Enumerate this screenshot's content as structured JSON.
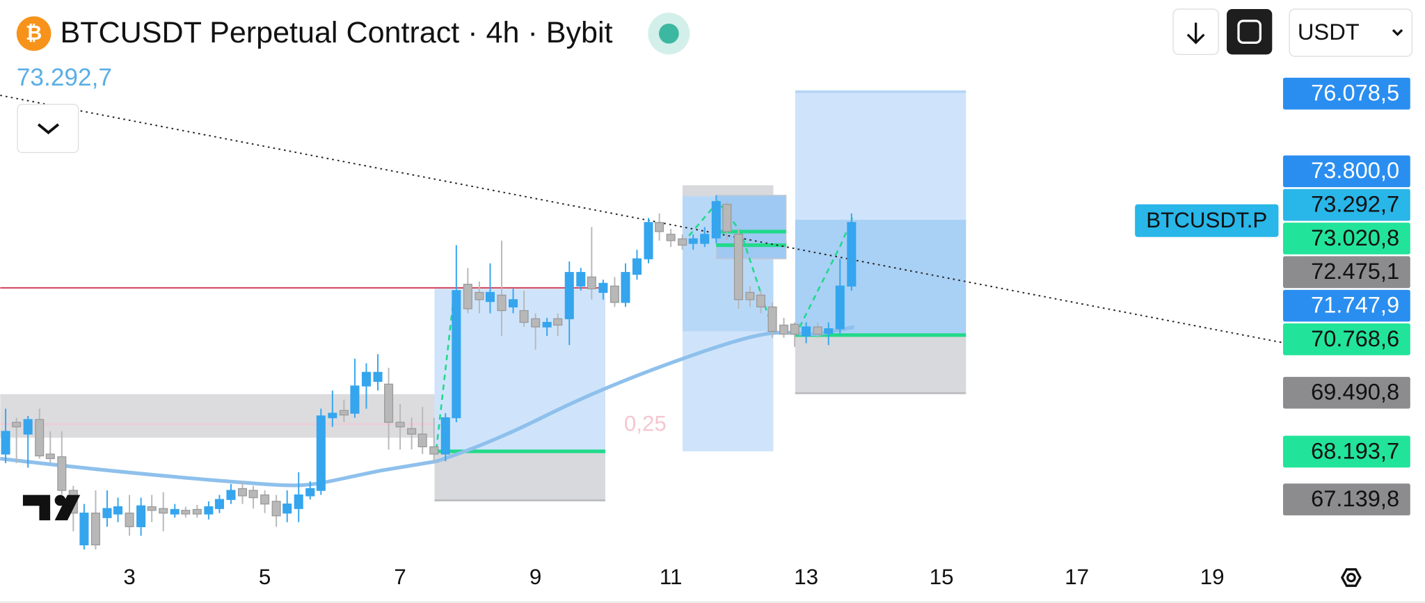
{
  "header": {
    "title": "BTCUSDT Perpetual Contract · 4h · Bybit",
    "last_price": {
      "value": 73292.7,
      "label": "73.292,7"
    },
    "currency": "USDT",
    "symbol_tag": "BTCUSDT.P"
  },
  "chart_data": {
    "type": "candlestick",
    "xlim": [
      1.09,
      20.02
    ],
    "xticks": [
      3,
      5,
      7,
      9,
      11,
      13,
      15,
      17,
      19
    ],
    "ylim": [
      65840,
      76740
    ],
    "up_color": "#35a5ee",
    "down_color": "#b8b8b8",
    "annotation": {
      "value": 0.25,
      "label": "0,25"
    },
    "x": [
      1.17,
      1.33,
      1.5,
      1.67,
      1.83,
      2,
      2.17,
      2.33,
      2.5,
      2.67,
      2.83,
      3,
      3.17,
      3.33,
      3.5,
      3.67,
      3.83,
      4,
      4.17,
      4.33,
      4.5,
      4.67,
      4.83,
      5,
      5.17,
      5.33,
      5.5,
      5.67,
      5.83,
      6,
      6.17,
      6.33,
      6.5,
      6.67,
      6.83,
      7,
      7.17,
      7.33,
      7.5,
      7.67,
      7.83,
      8,
      8.17,
      8.33,
      8.5,
      8.67,
      8.83,
      9,
      9.17,
      9.33,
      9.5,
      9.67,
      9.83,
      10,
      10.17,
      10.33,
      10.5,
      10.67,
      10.83,
      11,
      11.17,
      11.33,
      11.5,
      11.67,
      11.83,
      12,
      12.17,
      12.33,
      12.5,
      12.67,
      12.83,
      13,
      13.17,
      13.33,
      13.5,
      13.67
    ],
    "open": [
      68140,
      68840,
      68580,
      68900,
      68140,
      68080,
      67340,
      66140,
      66840,
      66740,
      66820,
      66840,
      66540,
      66980,
      66940,
      66820,
      66900,
      66920,
      66820,
      66940,
      67140,
      67380,
      67340,
      67240,
      67100,
      66840,
      66940,
      67220,
      67340,
      68940,
      69100,
      69040,
      69640,
      69740,
      69680,
      68840,
      68700,
      68580,
      68300,
      68140,
      68940,
      71880,
      71700,
      71500,
      71640,
      71380,
      71300,
      71120,
      70940,
      71120,
      71120,
      71840,
      72040,
      71700,
      71840,
      71480,
      72100,
      72440,
      73240,
      72980,
      72880,
      72780,
      72780,
      72900,
      73640,
      72980,
      71700,
      71640,
      71380,
      70980,
      71000,
      70740,
      70940,
      70800,
      70900,
      71840
    ],
    "high": [
      69140,
      68940,
      68980,
      69140,
      68640,
      68640,
      67440,
      67040,
      67340,
      67340,
      67180,
      67240,
      67180,
      67240,
      67300,
      67040,
      66980,
      67020,
      67100,
      67240,
      67480,
      67540,
      67440,
      67340,
      67240,
      67340,
      67740,
      67540,
      69140,
      69540,
      69340,
      70240,
      70140,
      70340,
      70040,
      69240,
      68940,
      69180,
      68940,
      69040,
      72740,
      72240,
      71940,
      72340,
      72840,
      71780,
      71740,
      71240,
      71140,
      71240,
      72380,
      72240,
      73140,
      71980,
      72040,
      72340,
      72640,
      73340,
      73440,
      73100,
      72980,
      72980,
      73140,
      73840,
      73700,
      73100,
      71840,
      71740,
      71480,
      71140,
      71040,
      71040,
      71040,
      71040,
      72440,
      73440
    ],
    "low": [
      67940,
      67940,
      67840,
      68040,
      67940,
      67240,
      66440,
      66040,
      66040,
      66540,
      66640,
      66340,
      66340,
      66640,
      66440,
      66740,
      66740,
      66740,
      66700,
      66840,
      67040,
      67040,
      66940,
      66840,
      66540,
      66640,
      66640,
      67140,
      67240,
      68740,
      68840,
      68940,
      69140,
      69540,
      68240,
      68240,
      68240,
      68140,
      67940,
      67980,
      68840,
      71240,
      71240,
      71240,
      70740,
      71240,
      70940,
      70440,
      70740,
      70740,
      70540,
      71740,
      71540,
      71540,
      71380,
      71380,
      71980,
      72340,
      72840,
      72700,
      72640,
      72640,
      72700,
      72780,
      72840,
      71340,
      71380,
      71240,
      70700,
      70700,
      70500,
      70580,
      70700,
      70540,
      70780,
      71740
    ],
    "close": [
      68640,
      68740,
      68900,
      68100,
      68040,
      67340,
      66840,
      66840,
      66140,
      66940,
      66980,
      66540,
      67000,
      66900,
      66840,
      66920,
      66820,
      66820,
      66980,
      67140,
      67340,
      67220,
      67180,
      67040,
      66780,
      67040,
      67240,
      67380,
      68980,
      69040,
      69000,
      69640,
      69940,
      69940,
      68840,
      68740,
      68580,
      68300,
      68140,
      68940,
      71740,
      71340,
      71540,
      71700,
      71300,
      71540,
      71040,
      70940,
      71040,
      70980,
      72140,
      72140,
      71780,
      71900,
      71480,
      72140,
      72440,
      73240,
      73040,
      72840,
      72740,
      72880,
      72980,
      73700,
      73040,
      71540,
      71540,
      71380,
      70840,
      70780,
      70780,
      70940,
      70780,
      70900,
      71840,
      73240
    ],
    "price_labels": [
      {
        "value": 76078.5,
        "label": "76.078,5",
        "color": "#2a8ef0",
        "text_color": "#ffffff"
      },
      {
        "value": 73800.0,
        "label": "73.800,0",
        "color": "#2a8ef0",
        "text_color": "#ffffff"
      },
      {
        "value": 73292.7,
        "label": "73.292,7",
        "color": "#29b6e8",
        "text_color": "#111111"
      },
      {
        "value": 73020.8,
        "label": "73.020,8",
        "color": "#22e39a",
        "text_color": "#111111"
      },
      {
        "value": 72475.1,
        "label": "72.475,1",
        "color": "#8c8c8e",
        "text_color": "#111111"
      },
      {
        "value": 71747.9,
        "label": "71.747,9",
        "color": "#2a8ef0",
        "text_color": "#ffffff"
      },
      {
        "value": 70768.6,
        "label": "70.768,6",
        "color": "#22e39a",
        "text_color": "#111111"
      },
      {
        "value": 69490.8,
        "label": "69.490,8",
        "color": "#8c8c8e",
        "text_color": "#111111"
      },
      {
        "value": 68193.7,
        "label": "68.193,7",
        "color": "#22e39a",
        "text_color": "#111111"
      },
      {
        "value": 67139.8,
        "label": "67.139,8",
        "color": "#8c8c8e",
        "text_color": "#111111"
      }
    ]
  }
}
